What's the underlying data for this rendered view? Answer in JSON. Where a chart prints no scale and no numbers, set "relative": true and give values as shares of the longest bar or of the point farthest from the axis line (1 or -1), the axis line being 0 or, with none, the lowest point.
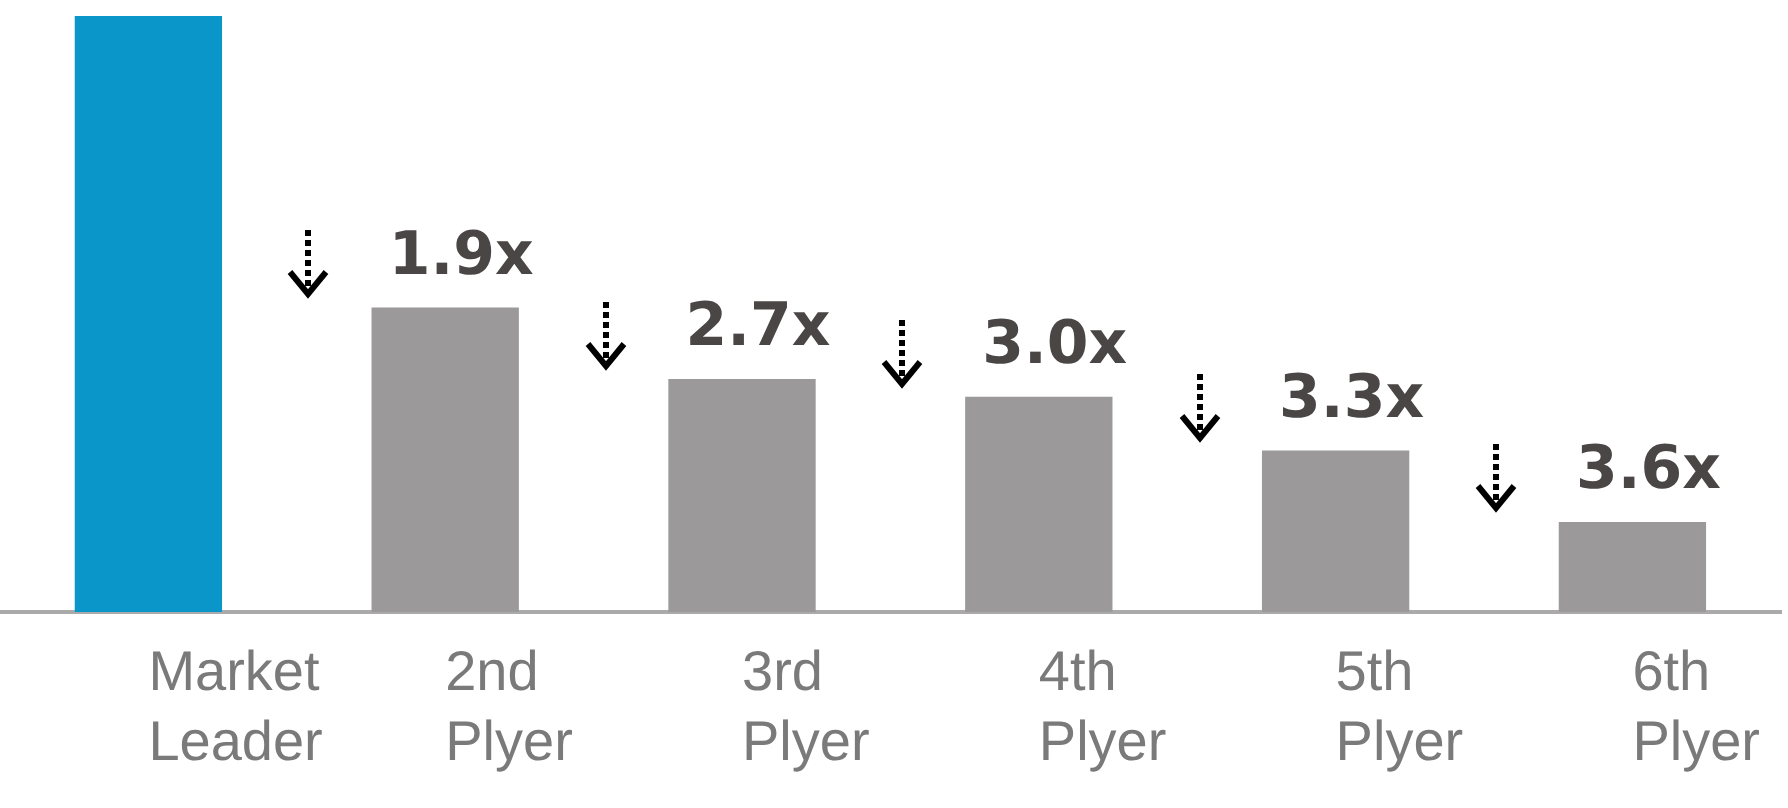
{
  "chart_data": {
    "type": "bar",
    "relative": true,
    "categories": [
      "Market Leader",
      "2nd Plyer",
      "3rd Plyer",
      "4th Plyer",
      "5th Plyer",
      "6th Plyer"
    ],
    "values": [
      1,
      0.51,
      0.39,
      0.36,
      0.27,
      0.15
    ],
    "colors": [
      "#0a96c8",
      "#9b9999",
      "#9b9999",
      "#9b9999",
      "#9b9999",
      "#9b9999"
    ],
    "annotations": [
      {
        "text": "1.9x",
        "x": "2nd Plyer",
        "y": 0.51
      },
      {
        "text": "2.7x",
        "x": "3rd Plyer",
        "y": 0.39
      },
      {
        "text": "3.0x",
        "x": "4th Plyer",
        "y": 0.36
      },
      {
        "text": "3.3x",
        "x": "5th Plyer",
        "y": 0.27
      },
      {
        "text": "3.6x",
        "x": "6th Plyer",
        "y": 0.15
      }
    ],
    "grid": false,
    "legend": false
  }
}
